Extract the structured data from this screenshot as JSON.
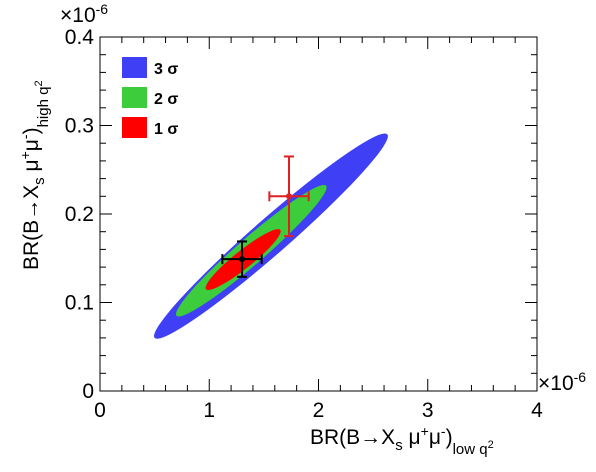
{
  "chart_data": {
    "type": "contour",
    "x_axis": {
      "label_main": "BR(B→X",
      "label_sub_s": "s",
      "label_mu": " μ",
      "label_sup1": "+",
      "label_mu2": "μ",
      "label_sup2": "-",
      "label_close": ")",
      "label_region": "low q",
      "label_region_sup": "2",
      "range": [
        0,
        4e-06
      ],
      "ticks": [
        0,
        1e-06,
        2e-06,
        3e-06,
        4e-06
      ],
      "tick_labels": [
        "0",
        "1",
        "2",
        "3",
        "4"
      ],
      "exponent_label": "×10",
      "exponent_sup": "-6"
    },
    "y_axis": {
      "label_main": "BR(B→X",
      "label_sub_s": "s",
      "label_mu": " μ",
      "label_sup1": "+",
      "label_mu2": "μ",
      "label_sup2": "-",
      "label_close": ")",
      "label_region": "high q",
      "label_region_sup": "2",
      "range": [
        0,
        4e-07
      ],
      "ticks": [
        0,
        1e-07,
        2e-07,
        3e-07,
        4e-07
      ],
      "tick_labels": [
        "0",
        "0.1",
        "0.2",
        "0.3",
        "0.4"
      ],
      "exponent_label": "×10",
      "exponent_sup": "-6"
    },
    "contours": [
      {
        "name": "3 σ",
        "color": "#3f3ff5",
        "center": [
          1.56e-06,
          1.75e-07
        ],
        "endpoints": [
          [
            5e-07,
            6e-08
          ],
          [
            2.63e-06,
            2.9e-07
          ]
        ],
        "half_width": 1.6e-08
      },
      {
        "name": "2 σ",
        "color": "#3ccc3c",
        "center": [
          1.39e-06,
          1.65e-07
        ],
        "endpoints": [
          [
            7e-07,
            8.5e-08
          ],
          [
            2.07e-06,
            2.32e-07
          ]
        ],
        "half_width": 1.2e-08
      },
      {
        "name": "1 σ",
        "color": "#ff0000",
        "center": [
          1.29e-06,
          1.48e-07
        ],
        "endpoints": [
          [
            9.7e-07,
            1.15e-07
          ],
          [
            1.65e-06,
            1.82e-07
          ]
        ],
        "half_width": 8e-09
      }
    ],
    "points": [
      {
        "label": "black",
        "color": "#000000",
        "x": 1.3e-06,
        "y": 1.49e-07,
        "x_err": 1.8e-07,
        "y_err": 2e-08
      },
      {
        "label": "red",
        "color": "#e02020",
        "x": 1.73e-06,
        "y": 2.2e-07,
        "x_err": 1.8e-07,
        "y_err_up": 4.5e-08,
        "y_err_down": 4.5e-08
      }
    ],
    "legend": [
      {
        "label": "3 σ",
        "color": "#3f3ff5"
      },
      {
        "label": "2 σ",
        "color": "#3ccc3c"
      },
      {
        "label": "1 σ",
        "color": "#ff0000"
      }
    ],
    "legend_position": "top-left"
  }
}
